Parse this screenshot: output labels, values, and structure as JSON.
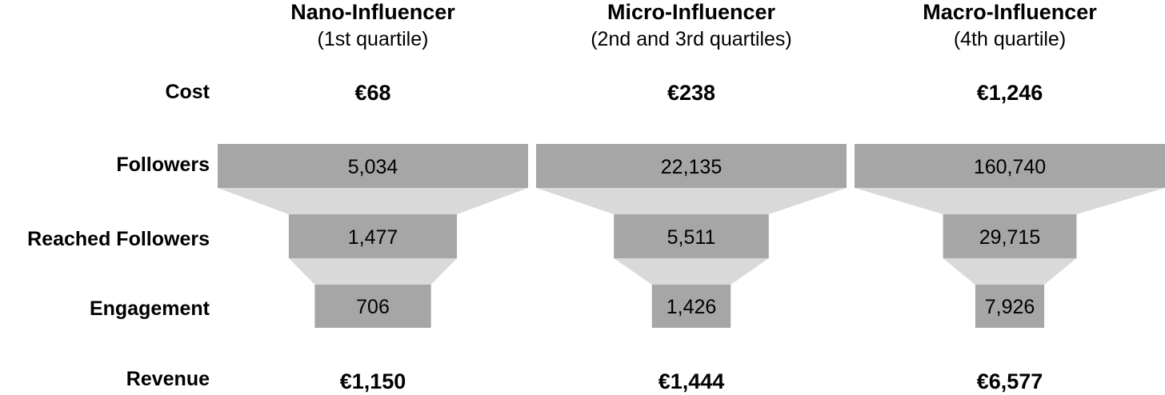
{
  "chart_data": {
    "type": "funnel",
    "row_labels": {
      "cost": "Cost",
      "followers": "Followers",
      "reached": "Reached Followers",
      "engagement": "Engagement",
      "revenue": "Revenue"
    },
    "columns": [
      {
        "title": "Nano-Influencer",
        "subtitle": "(1st quartile)",
        "cost": "€68",
        "followers": 5034,
        "followers_label": "5,034",
        "reached": 1477,
        "reached_label": "1,477",
        "engagement": 706,
        "engagement_label": "706",
        "revenue": "€1,150"
      },
      {
        "title": "Micro-Influencer",
        "subtitle": "(2nd and 3rd quartiles)",
        "cost": "€238",
        "followers": 22135,
        "followers_label": "22,135",
        "reached": 5511,
        "reached_label": "5,511",
        "engagement": 1426,
        "engagement_label": "1,426",
        "revenue": "€1,444"
      },
      {
        "title": "Macro-Influencer",
        "subtitle": "(4th quartile)",
        "cost": "€1,246",
        "followers": 160740,
        "followers_label": "160,740",
        "reached": 29715,
        "reached_label": "29,715",
        "engagement": 7926,
        "engagement_label": "7,926",
        "revenue": "€6,577"
      }
    ],
    "colors": {
      "bar": "#a6a6a6",
      "connector": "#d9d9d9"
    }
  }
}
